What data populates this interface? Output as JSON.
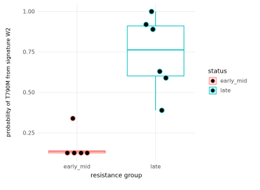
{
  "chart_data": {
    "type": "box",
    "x_label": "resistance group",
    "y_label": "probability of T790M from signature W2",
    "legend_title": "status",
    "categories": [
      "early_mid",
      "late"
    ],
    "series": [
      {
        "name": "early_mid",
        "color": "#f8766d",
        "box": {
          "min": 0.127,
          "q1": 0.127,
          "median": 0.136,
          "q3": 0.14,
          "max": 0.14
        },
        "points": [
          0.34,
          0.127,
          0.127,
          0.127,
          0.127
        ]
      },
      {
        "name": "late",
        "color": "#00bfc4",
        "box": {
          "min": 0.39,
          "q1": 0.602,
          "median": 0.763,
          "q3": 0.911,
          "max": 1.0
        },
        "points": [
          1.0,
          0.92,
          0.89,
          0.63,
          0.59,
          0.39
        ]
      }
    ],
    "ylim": [
      0.076,
      1.05
    ],
    "yticks": [
      0.25,
      {
        "value": 0.5,
        "label": "0.50"
      },
      0.75,
      {
        "value": 1.0,
        "label": "1.00"
      }
    ],
    "grid": true,
    "legend_position": "right"
  }
}
